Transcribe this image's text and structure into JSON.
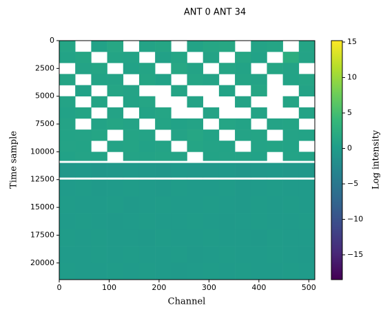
{
  "chart_data": {
    "type": "heatmap",
    "title": "ANT 0 ANT 34",
    "x_label": "Channel",
    "y_label": "Time sample",
    "colorbar_label": "Log intensity",
    "colormap": "viridis",
    "xbins": [
      0,
      32,
      64,
      96,
      128,
      160,
      192,
      224,
      256,
      288,
      320,
      352,
      384,
      416,
      448,
      480,
      512
    ],
    "ybins": [
      0,
      1000,
      2000,
      3000,
      4000,
      5000,
      6000,
      7000,
      8000,
      9000,
      10000,
      10800,
      11000,
      12300,
      12500,
      14000,
      15500,
      17000,
      18500,
      20000,
      21500
    ],
    "z": [
      [
        1.2,
        null,
        0.8,
        1.5,
        null,
        1.0,
        1.3,
        null,
        0.9,
        1.4,
        1.6,
        null,
        1.0,
        1.2,
        null,
        1.1
      ],
      [
        0.9,
        1.3,
        null,
        1.1,
        1.0,
        null,
        0.7,
        1.2,
        null,
        1.0,
        null,
        1.4,
        0.8,
        null,
        2.5,
        1.0
      ],
      [
        null,
        1.0,
        1.2,
        null,
        0.8,
        1.1,
        null,
        1.5,
        1.0,
        null,
        1.2,
        0.9,
        null,
        1.3,
        1.0,
        null
      ],
      [
        1.1,
        null,
        0.9,
        1.0,
        null,
        1.3,
        0.8,
        null,
        1.2,
        1.0,
        null,
        1.1,
        1.0,
        null,
        0.9,
        1.2
      ],
      [
        null,
        0.8,
        null,
        1.2,
        1.0,
        null,
        null,
        1.1,
        null,
        null,
        0.9,
        null,
        1.3,
        null,
        null,
        1.0
      ],
      [
        1.0,
        null,
        1.1,
        null,
        0.9,
        1.2,
        null,
        null,
        1.0,
        null,
        null,
        1.0,
        null,
        null,
        1.1,
        null
      ],
      [
        0.8,
        1.1,
        null,
        1.0,
        null,
        0.9,
        1.2,
        null,
        null,
        1.0,
        null,
        null,
        0.9,
        null,
        null,
        1.0
      ],
      [
        1.0,
        null,
        0.9,
        1.3,
        1.0,
        null,
        1.1,
        0.8,
        1.0,
        null,
        1.2,
        0.9,
        null,
        1.0,
        1.1,
        null
      ],
      [
        0.9,
        1.0,
        1.2,
        null,
        1.1,
        1.0,
        null,
        1.0,
        1.4,
        0.9,
        null,
        1.0,
        1.1,
        null,
        1.0,
        0.9
      ],
      [
        1.0,
        0.9,
        null,
        1.0,
        1.1,
        0.8,
        1.0,
        null,
        1.2,
        1.0,
        0.9,
        null,
        1.0,
        1.1,
        0.9,
        null
      ],
      [
        0.8,
        1.0,
        0.9,
        null,
        1.0,
        0.9,
        1.1,
        1.0,
        null,
        0.9,
        1.0,
        1.0,
        0.8,
        null,
        1.0,
        0.9
      ],
      [
        null,
        null,
        null,
        null,
        null,
        null,
        null,
        null,
        null,
        null,
        null,
        null,
        null,
        null,
        null,
        null
      ],
      [
        -0.6,
        -0.5,
        -0.7,
        -0.6,
        -0.5,
        -0.6,
        -0.7,
        -0.5,
        -0.6,
        -0.6,
        -0.5,
        -0.7,
        -0.6,
        -0.5,
        -0.6,
        -0.6
      ],
      [
        null,
        null,
        null,
        null,
        null,
        null,
        null,
        null,
        null,
        null,
        null,
        null,
        null,
        null,
        null,
        null
      ],
      [
        -0.2,
        -0.1,
        -0.3,
        -0.2,
        -0.1,
        -0.2,
        -0.3,
        -0.1,
        -0.2,
        -0.2,
        -0.1,
        -0.3,
        -0.2,
        -0.1,
        -0.2,
        -0.2
      ],
      [
        -0.1,
        -0.2,
        -0.2,
        -0.1,
        -0.3,
        -0.2,
        -0.1,
        -0.2,
        -0.2,
        -0.1,
        -0.2,
        -0.3,
        -0.1,
        -0.2,
        -0.1,
        -0.2
      ],
      [
        -0.2,
        -0.1,
        -0.2,
        -0.3,
        -0.2,
        -0.1,
        -0.2,
        -0.2,
        -0.1,
        -0.2,
        -0.3,
        -0.2,
        -0.1,
        -0.2,
        -0.2,
        -0.1
      ],
      [
        -0.1,
        -0.2,
        -0.1,
        -0.2,
        -0.2,
        -0.3,
        -0.1,
        -0.2,
        -0.2,
        -0.1,
        -0.2,
        -0.2,
        -0.3,
        -0.1,
        -0.2,
        -0.2
      ],
      [
        -0.2,
        -0.2,
        -0.1,
        -0.2,
        -0.1,
        -0.2,
        -0.2,
        -0.1,
        -0.3,
        -0.2,
        -0.1,
        -0.2,
        -0.2,
        -0.1,
        -0.2,
        -0.3
      ],
      [
        -0.1,
        -0.2,
        -0.2,
        -0.1,
        -0.2,
        -0.1,
        -0.2,
        -0.3,
        -0.2,
        -0.1,
        -0.2,
        -0.1,
        -0.2,
        -0.2,
        -0.1,
        -0.2
      ]
    ],
    "xlim": [
      0,
      512
    ],
    "ylim": [
      21500,
      0
    ],
    "clim": [
      -18.5,
      15.2
    ],
    "xticks": [
      0,
      100,
      200,
      300,
      400,
      500
    ],
    "yticks": [
      0,
      2500,
      5000,
      7500,
      10000,
      12500,
      15000,
      17500,
      20000
    ],
    "cticks": [
      {
        "value": -15,
        "label": "−15"
      },
      {
        "value": -10,
        "label": "−10"
      },
      {
        "value": -5,
        "label": "−5"
      },
      0,
      5,
      10,
      15
    ]
  }
}
